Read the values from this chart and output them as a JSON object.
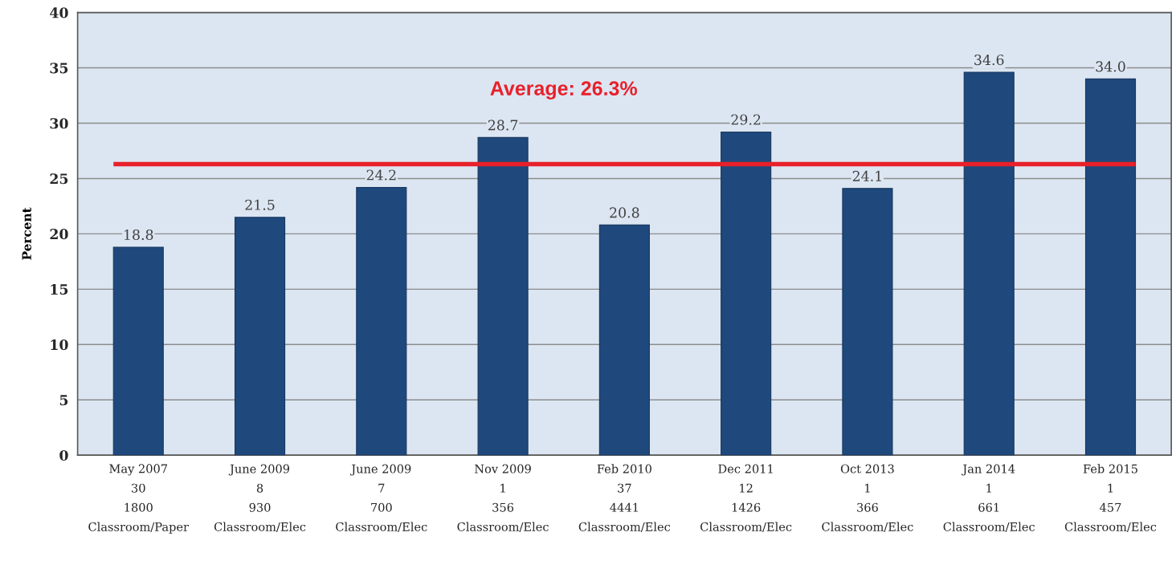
{
  "chart_data": {
    "type": "bar",
    "ylabel": "Percent",
    "categories": [
      "May 2007\n30\n1800\nClassroom/Paper",
      "June 2009\n8\n930\nClassroom/Elec",
      "June 2009\n7\n700\nClassroom/Elec",
      "Nov 2009\n1\n356\nClassroom/Elec",
      "Feb 2010\n37\n4441\nClassroom/Elec",
      "Dec 2011\n12\n1426\nClassroom/Elec",
      "Oct 2013\n1\n366\nClassroom/Elec",
      "Jan 2014\n1\n661\nClassroom/Elec",
      "Feb 2015\n1\n457\nClassroom/Elec"
    ],
    "values": [
      18.8,
      21.5,
      24.2,
      28.7,
      20.8,
      29.2,
      24.1,
      34.6,
      34.0
    ],
    "value_labels": [
      "18.8",
      "21.5",
      "24.2",
      "28.7",
      "20.8",
      "29.2",
      "24.1",
      "34.6",
      "34.0"
    ],
    "color": "#1f497d",
    "ylim": [
      0,
      40
    ],
    "yticks": [
      0,
      5,
      10,
      15,
      20,
      25,
      30,
      35,
      40
    ],
    "grid": "y",
    "ref_lines": [
      {
        "axis": "y",
        "value": 26.3,
        "label": "Average: 26.3%",
        "color": "#e8202a"
      }
    ]
  }
}
